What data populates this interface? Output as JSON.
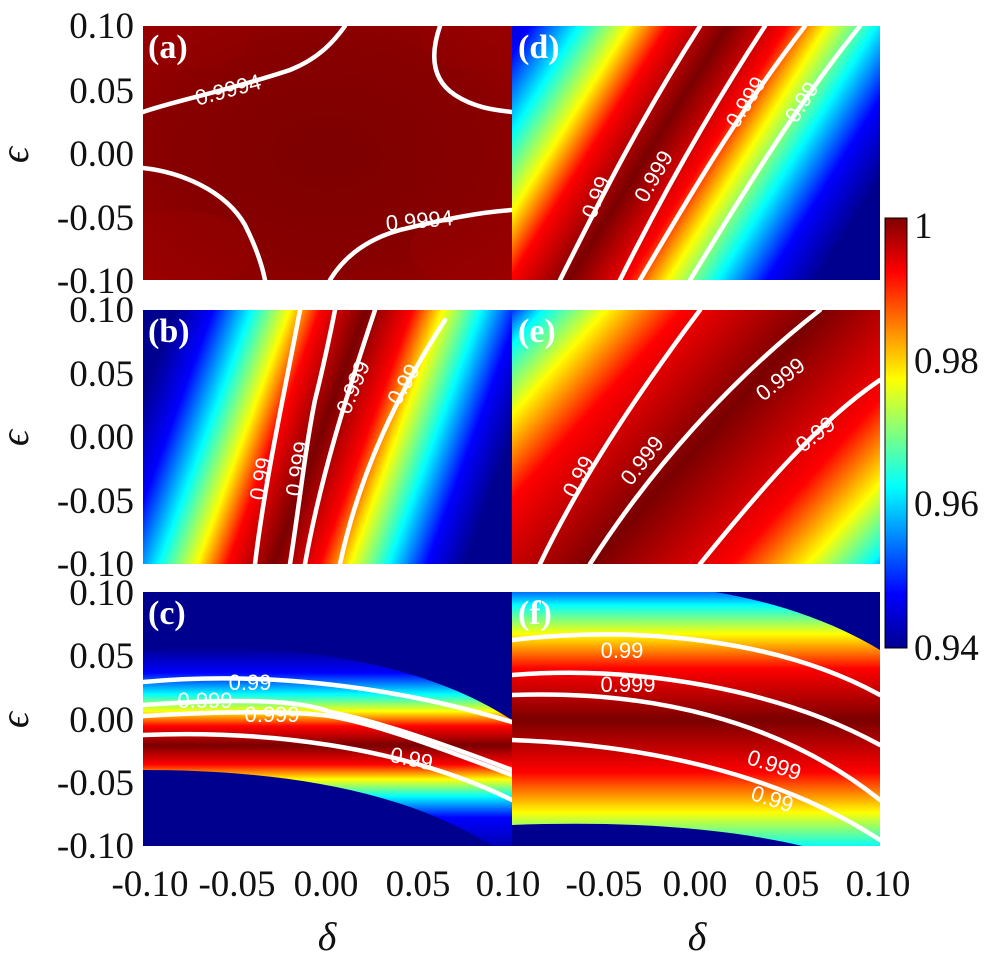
{
  "chart_data": {
    "type": "heatmap",
    "title": "",
    "colormap": "jet",
    "colorbar": {
      "min": 0.94,
      "max": 1,
      "ticks": [
        {
          "value": 1,
          "label": "1"
        },
        {
          "value": 0.98,
          "label": "0.98"
        },
        {
          "value": 0.96,
          "label": "0.96"
        },
        {
          "value": 0.94,
          "label": "0.94"
        }
      ]
    },
    "xlabel": "δ",
    "ylabel": "ϵ",
    "xlim": [
      -0.1,
      0.1
    ],
    "ylim": [
      -0.1,
      0.1
    ],
    "x_ticks_left": [
      "-0.10",
      "-0.05",
      "0.00",
      "0.05",
      "0.10"
    ],
    "x_ticks_right": [
      "-0.05",
      "0.00",
      "0.05",
      "0.10"
    ],
    "y_ticks": [
      "0.10",
      "0.05",
      "0.00",
      "-0.05",
      "-0.10"
    ],
    "panels": [
      {
        "id": "a",
        "label": "(a)",
        "contours": [
          "0.9994",
          "0.9994"
        ]
      },
      {
        "id": "d",
        "label": "(d)",
        "contours": [
          "0.99",
          "0.999",
          "0.999",
          "0.99"
        ]
      },
      {
        "id": "b",
        "label": "(b)",
        "contours": [
          "0.99",
          "0.999",
          "0.999",
          "0.99"
        ]
      },
      {
        "id": "e",
        "label": "(e)",
        "contours": [
          "0.99",
          "0.999",
          "0.999",
          "0.99"
        ]
      },
      {
        "id": "c",
        "label": "(c)",
        "contours": [
          "0.99",
          "0.999",
          "0.999",
          "0.99"
        ]
      },
      {
        "id": "f",
        "label": "(f)",
        "contours": [
          "0.99",
          "0.999",
          "0.999",
          "0.99"
        ]
      }
    ]
  }
}
